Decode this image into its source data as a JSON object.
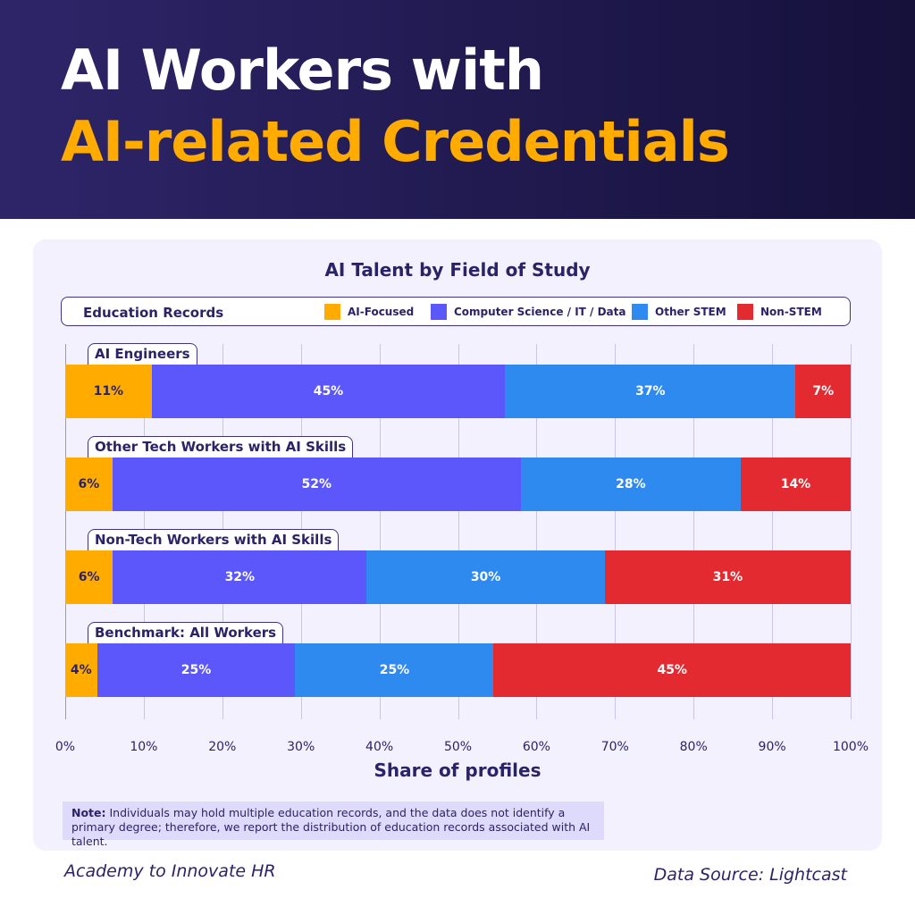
{
  "header": {
    "line1": "AI Workers with",
    "line2": "AI-related Credentials"
  },
  "chart_data": {
    "type": "bar",
    "orientation": "horizontal",
    "stacked": true,
    "title": "AI Talent by Field of Study",
    "legend_title": "Education Records",
    "legend_placement": "top",
    "xlabel": "Share of profiles",
    "ylabel": "",
    "xlim": [
      0,
      100
    ],
    "ticks": [
      "0%",
      "10%",
      "20%",
      "30%",
      "40%",
      "50%",
      "60%",
      "70%",
      "80%",
      "90%",
      "100%"
    ],
    "categories": [
      "AI Engineers",
      "Other Tech Workers with AI Skills",
      "Non-Tech Workers with AI Skills",
      "Benchmark: All Workers"
    ],
    "series": [
      {
        "name": "AI-Focused",
        "color": "#ffab00",
        "text_color": "#2b2368",
        "values": [
          11,
          6,
          6,
          4
        ]
      },
      {
        "name": "Computer Science / IT / Data",
        "color": "#5b57fb",
        "text_color": "#ffffff",
        "values": [
          45,
          52,
          32,
          25
        ]
      },
      {
        "name": "Other STEM",
        "color": "#2f8af0",
        "text_color": "#ffffff",
        "values": [
          37,
          28,
          30,
          25
        ]
      },
      {
        "name": "Non-STEM",
        "color": "#e32a31",
        "text_color": "#ffffff",
        "values": [
          7,
          14,
          31,
          45
        ]
      }
    ],
    "grid": true
  },
  "note": {
    "label": "Note:",
    "text": " Individuals may hold multiple education records, and the data does not identify a primary degree; therefore, we report the distribution of education records associated with AI talent."
  },
  "footer": {
    "left": "Academy to Innovate HR",
    "right": "Data Source: Lightcast"
  }
}
